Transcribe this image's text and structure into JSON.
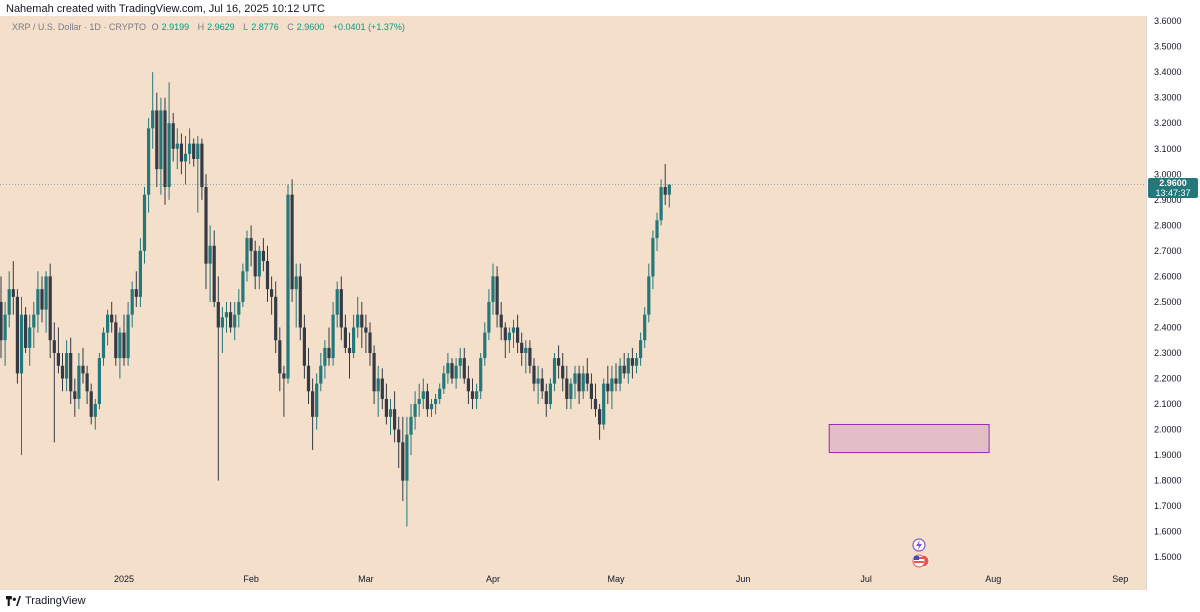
{
  "header": {
    "caption": "Nahemah created with TradingView.com, Jul 16, 2025 10:12 UTC"
  },
  "symbol": {
    "name": "XRP / U.S. Dollar · 1D · CRYPTO",
    "o_label": "O",
    "o": "2.9199",
    "h_label": "H",
    "h": "2.9629",
    "l_label": "L",
    "l": "2.8776",
    "c_label": "C",
    "c": "2.9600",
    "change": "+0.0401 (+1.37%)"
  },
  "last_price": {
    "value": "2.9600",
    "countdown": "13:47:37"
  },
  "footer": {
    "brand": "TradingView"
  },
  "colors": {
    "up": "#22787a",
    "down": "#363a45",
    "background": "#f4dfca",
    "zone_fill": "#e0b8c6",
    "zone_stroke": "#9c27b0"
  },
  "chart_data": {
    "type": "candlestick",
    "title": "",
    "x_ticks": [
      "2025",
      "Feb",
      "Mar",
      "Apr",
      "May",
      "Jun",
      "Jul",
      "Aug",
      "Sep"
    ],
    "y_ticks": [
      "1.5000",
      "1.6000",
      "1.7000",
      "1.8000",
      "1.9000",
      "2.0000",
      "2.1000",
      "2.2000",
      "2.3000",
      "2.4000",
      "2.5000",
      "2.6000",
      "2.7000",
      "2.8000",
      "2.9000",
      "3.0000",
      "3.1000",
      "3.2000",
      "3.3000",
      "3.4000",
      "3.5000",
      "3.6000"
    ],
    "ylim": [
      1.45,
      3.62
    ],
    "grid": false,
    "start_date": "2024-12-01",
    "ohlc": [
      [
        2.82,
        2.88,
        2.38,
        2.5
      ],
      [
        2.5,
        2.6,
        2.28,
        2.35
      ],
      [
        2.35,
        2.5,
        2.25,
        2.45
      ],
      [
        2.45,
        2.62,
        2.4,
        2.55
      ],
      [
        2.55,
        2.66,
        2.45,
        2.52
      ],
      [
        2.52,
        2.55,
        2.18,
        2.22
      ],
      [
        2.22,
        2.52,
        1.9,
        2.45
      ],
      [
        2.45,
        2.48,
        2.3,
        2.32
      ],
      [
        2.32,
        2.45,
        2.25,
        2.4
      ],
      [
        2.4,
        2.5,
        2.32,
        2.45
      ],
      [
        2.45,
        2.62,
        2.38,
        2.55
      ],
      [
        2.55,
        2.6,
        2.42,
        2.47
      ],
      [
        2.47,
        2.62,
        2.38,
        2.6
      ],
      [
        2.6,
        2.65,
        2.28,
        2.35
      ],
      [
        2.35,
        2.42,
        1.95,
        2.3
      ],
      [
        2.3,
        2.4,
        2.22,
        2.25
      ],
      [
        2.25,
        2.3,
        2.15,
        2.2
      ],
      [
        2.2,
        2.35,
        2.15,
        2.3
      ],
      [
        2.3,
        2.36,
        2.1,
        2.15
      ],
      [
        2.15,
        2.2,
        2.05,
        2.12
      ],
      [
        2.12,
        2.3,
        2.08,
        2.25
      ],
      [
        2.25,
        2.32,
        2.18,
        2.22
      ],
      [
        2.22,
        2.25,
        2.1,
        2.15
      ],
      [
        2.15,
        2.18,
        2.02,
        2.05
      ],
      [
        2.05,
        2.12,
        2,
        2.1
      ],
      [
        2.1,
        2.3,
        2.08,
        2.28
      ],
      [
        2.28,
        2.4,
        2.25,
        2.38
      ],
      [
        2.38,
        2.47,
        2.33,
        2.45
      ],
      [
        2.45,
        2.5,
        2.38,
        2.42
      ],
      [
        2.42,
        2.45,
        2.25,
        2.28
      ],
      [
        2.28,
        2.4,
        2.2,
        2.38
      ],
      [
        2.38,
        2.45,
        2.25,
        2.28
      ],
      [
        2.28,
        2.5,
        2.25,
        2.45
      ],
      [
        2.45,
        2.58,
        2.4,
        2.55
      ],
      [
        2.55,
        2.62,
        2.48,
        2.52
      ],
      [
        2.52,
        2.75,
        2.48,
        2.7
      ],
      [
        2.7,
        2.95,
        2.65,
        2.92
      ],
      [
        2.92,
        3.22,
        2.85,
        3.18
      ],
      [
        3.18,
        3.4,
        3.1,
        3.25
      ],
      [
        3.25,
        3.32,
        2.95,
        3.02
      ],
      [
        3.02,
        3.3,
        2.92,
        3.25
      ],
      [
        3.25,
        3.3,
        2.88,
        2.95
      ],
      [
        2.95,
        3.36,
        2.9,
        3.2
      ],
      [
        3.2,
        3.24,
        3.05,
        3.1
      ],
      [
        3.1,
        3.18,
        3.02,
        3.12
      ],
      [
        3.12,
        3.16,
        3,
        3.05
      ],
      [
        3.05,
        3.15,
        2.96,
        3.08
      ],
      [
        3.08,
        3.18,
        3.04,
        3.12
      ],
      [
        3.12,
        3.14,
        3.03,
        3.06
      ],
      [
        3.06,
        3.15,
        2.85,
        3.12
      ],
      [
        3.12,
        3.14,
        2.9,
        2.95
      ],
      [
        2.95,
        3,
        2.55,
        2.65
      ],
      [
        2.65,
        2.8,
        2.5,
        2.72
      ],
      [
        2.72,
        2.78,
        2.48,
        2.5
      ],
      [
        2.5,
        2.6,
        1.8,
        2.4
      ],
      [
        2.4,
        2.48,
        2.3,
        2.44
      ],
      [
        2.44,
        2.5,
        2.38,
        2.46
      ],
      [
        2.46,
        2.5,
        2.38,
        2.4
      ],
      [
        2.4,
        2.5,
        2.35,
        2.45
      ],
      [
        2.45,
        2.55,
        2.4,
        2.5
      ],
      [
        2.5,
        2.65,
        2.48,
        2.62
      ],
      [
        2.62,
        2.78,
        2.58,
        2.75
      ],
      [
        2.75,
        2.8,
        2.64,
        2.7
      ],
      [
        2.7,
        2.74,
        2.55,
        2.6
      ],
      [
        2.6,
        2.72,
        2.55,
        2.7
      ],
      [
        2.7,
        2.75,
        2.62,
        2.66
      ],
      [
        2.66,
        2.72,
        2.5,
        2.55
      ],
      [
        2.55,
        2.6,
        2.45,
        2.52
      ],
      [
        2.52,
        2.58,
        2.3,
        2.35
      ],
      [
        2.35,
        2.4,
        2.15,
        2.22
      ],
      [
        2.22,
        2.25,
        2.05,
        2.2
      ],
      [
        2.2,
        2.96,
        2.18,
        2.92
      ],
      [
        2.92,
        2.98,
        2.5,
        2.55
      ],
      [
        2.55,
        2.65,
        2.4,
        2.6
      ],
      [
        2.6,
        2.65,
        2.35,
        2.4
      ],
      [
        2.4,
        2.45,
        2.2,
        2.25
      ],
      [
        2.25,
        2.32,
        2.1,
        2.15
      ],
      [
        2.15,
        2.2,
        1.92,
        2.05
      ],
      [
        2.05,
        2.22,
        2,
        2.18
      ],
      [
        2.18,
        2.3,
        2.15,
        2.25
      ],
      [
        2.25,
        2.35,
        2.2,
        2.32
      ],
      [
        2.32,
        2.4,
        2.25,
        2.28
      ],
      [
        2.28,
        2.5,
        2.25,
        2.45
      ],
      [
        2.45,
        2.58,
        2.4,
        2.55
      ],
      [
        2.55,
        2.6,
        2.35,
        2.4
      ],
      [
        2.4,
        2.45,
        2.3,
        2.32
      ],
      [
        2.32,
        2.38,
        2.2,
        2.3
      ],
      [
        2.3,
        2.45,
        2.28,
        2.4
      ],
      [
        2.4,
        2.52,
        2.36,
        2.45
      ],
      [
        2.45,
        2.5,
        2.32,
        2.4
      ],
      [
        2.4,
        2.45,
        2.3,
        2.38
      ],
      [
        2.38,
        2.42,
        2.25,
        2.3
      ],
      [
        2.3,
        2.33,
        2.1,
        2.15
      ],
      [
        2.15,
        2.25,
        2.05,
        2.2
      ],
      [
        2.2,
        2.24,
        2.08,
        2.12
      ],
      [
        2.12,
        2.18,
        2.02,
        2.05
      ],
      [
        2.05,
        2.12,
        1.98,
        2.08
      ],
      [
        2.08,
        2.15,
        1.95,
        2
      ],
      [
        2,
        2.05,
        1.85,
        1.95
      ],
      [
        1.95,
        2.05,
        1.72,
        1.8
      ],
      [
        1.8,
        2.05,
        1.62,
        1.98
      ],
      [
        1.98,
        2.1,
        1.9,
        2.05
      ],
      [
        2.05,
        2.15,
        2,
        2.1
      ],
      [
        2.1,
        2.18,
        2.05,
        2.12
      ],
      [
        2.12,
        2.2,
        2.08,
        2.15
      ],
      [
        2.15,
        2.18,
        2.05,
        2.08
      ],
      [
        2.08,
        2.12,
        2.05,
        2.1
      ],
      [
        2.1,
        2.14,
        2.06,
        2.12
      ],
      [
        2.12,
        2.18,
        2.1,
        2.16
      ],
      [
        2.16,
        2.25,
        2.14,
        2.22
      ],
      [
        2.22,
        2.3,
        2.18,
        2.26
      ],
      [
        2.26,
        2.28,
        2.18,
        2.2
      ],
      [
        2.2,
        2.28,
        2.16,
        2.25
      ],
      [
        2.25,
        2.32,
        2.2,
        2.28
      ],
      [
        2.28,
        2.32,
        2.18,
        2.2
      ],
      [
        2.2,
        2.25,
        2.1,
        2.15
      ],
      [
        2.15,
        2.2,
        2.08,
        2.12
      ],
      [
        2.12,
        2.18,
        2.08,
        2.15
      ],
      [
        2.15,
        2.3,
        2.12,
        2.28
      ],
      [
        2.28,
        2.42,
        2.25,
        2.38
      ],
      [
        2.38,
        2.55,
        2.35,
        2.5
      ],
      [
        2.5,
        2.65,
        2.45,
        2.6
      ],
      [
        2.6,
        2.64,
        2.4,
        2.45
      ],
      [
        2.45,
        2.5,
        2.35,
        2.4
      ],
      [
        2.4,
        2.42,
        2.28,
        2.35
      ],
      [
        2.35,
        2.4,
        2.3,
        2.38
      ],
      [
        2.38,
        2.43,
        2.32,
        2.4
      ],
      [
        2.4,
        2.45,
        2.3,
        2.34
      ],
      [
        2.34,
        2.38,
        2.25,
        2.3
      ],
      [
        2.3,
        2.35,
        2.22,
        2.32
      ],
      [
        2.32,
        2.35,
        2.22,
        2.25
      ],
      [
        2.25,
        2.28,
        2.15,
        2.18
      ],
      [
        2.18,
        2.25,
        2.1,
        2.2
      ],
      [
        2.2,
        2.24,
        2.12,
        2.15
      ],
      [
        2.15,
        2.18,
        2.05,
        2.1
      ],
      [
        2.1,
        2.2,
        2.08,
        2.18
      ],
      [
        2.18,
        2.3,
        2.15,
        2.28
      ],
      [
        2.28,
        2.33,
        2.2,
        2.25
      ],
      [
        2.25,
        2.3,
        2.15,
        2.2
      ],
      [
        2.2,
        2.25,
        2.08,
        2.12
      ],
      [
        2.12,
        2.2,
        2.08,
        2.18
      ],
      [
        2.18,
        2.25,
        2.12,
        2.22
      ],
      [
        2.22,
        2.25,
        2.1,
        2.15
      ],
      [
        2.15,
        2.25,
        2.12,
        2.22
      ],
      [
        2.22,
        2.28,
        2.15,
        2.18
      ],
      [
        2.18,
        2.22,
        2.08,
        2.12
      ],
      [
        2.12,
        2.18,
        2.05,
        2.08
      ],
      [
        2.08,
        2.1,
        1.96,
        2.02
      ],
      [
        2.02,
        2.2,
        2,
        2.18
      ],
      [
        2.18,
        2.25,
        2.1,
        2.15
      ],
      [
        2.15,
        2.25,
        2.08,
        2.2
      ],
      [
        2.2,
        2.26,
        2.15,
        2.18
      ],
      [
        2.18,
        2.28,
        2.15,
        2.25
      ],
      [
        2.25,
        2.3,
        2.2,
        2.22
      ],
      [
        2.22,
        2.3,
        2.18,
        2.28
      ],
      [
        2.28,
        2.32,
        2.2,
        2.25
      ],
      [
        2.25,
        2.3,
        2.22,
        2.28
      ],
      [
        2.28,
        2.38,
        2.25,
        2.35
      ],
      [
        2.35,
        2.48,
        2.32,
        2.45
      ],
      [
        2.45,
        2.65,
        2.42,
        2.6
      ],
      [
        2.6,
        2.78,
        2.55,
        2.75
      ],
      [
        2.75,
        2.85,
        2.7,
        2.82
      ],
      [
        2.82,
        2.98,
        2.8,
        2.95
      ],
      [
        2.95,
        3.04,
        2.88,
        2.92
      ],
      [
        2.92,
        2.96,
        2.87,
        2.96
      ]
    ],
    "zone": {
      "x_from": "2025-06-22",
      "x_to": "2025-07-31",
      "y_from": 1.91,
      "y_to": 2.02
    },
    "last": 2.96
  }
}
